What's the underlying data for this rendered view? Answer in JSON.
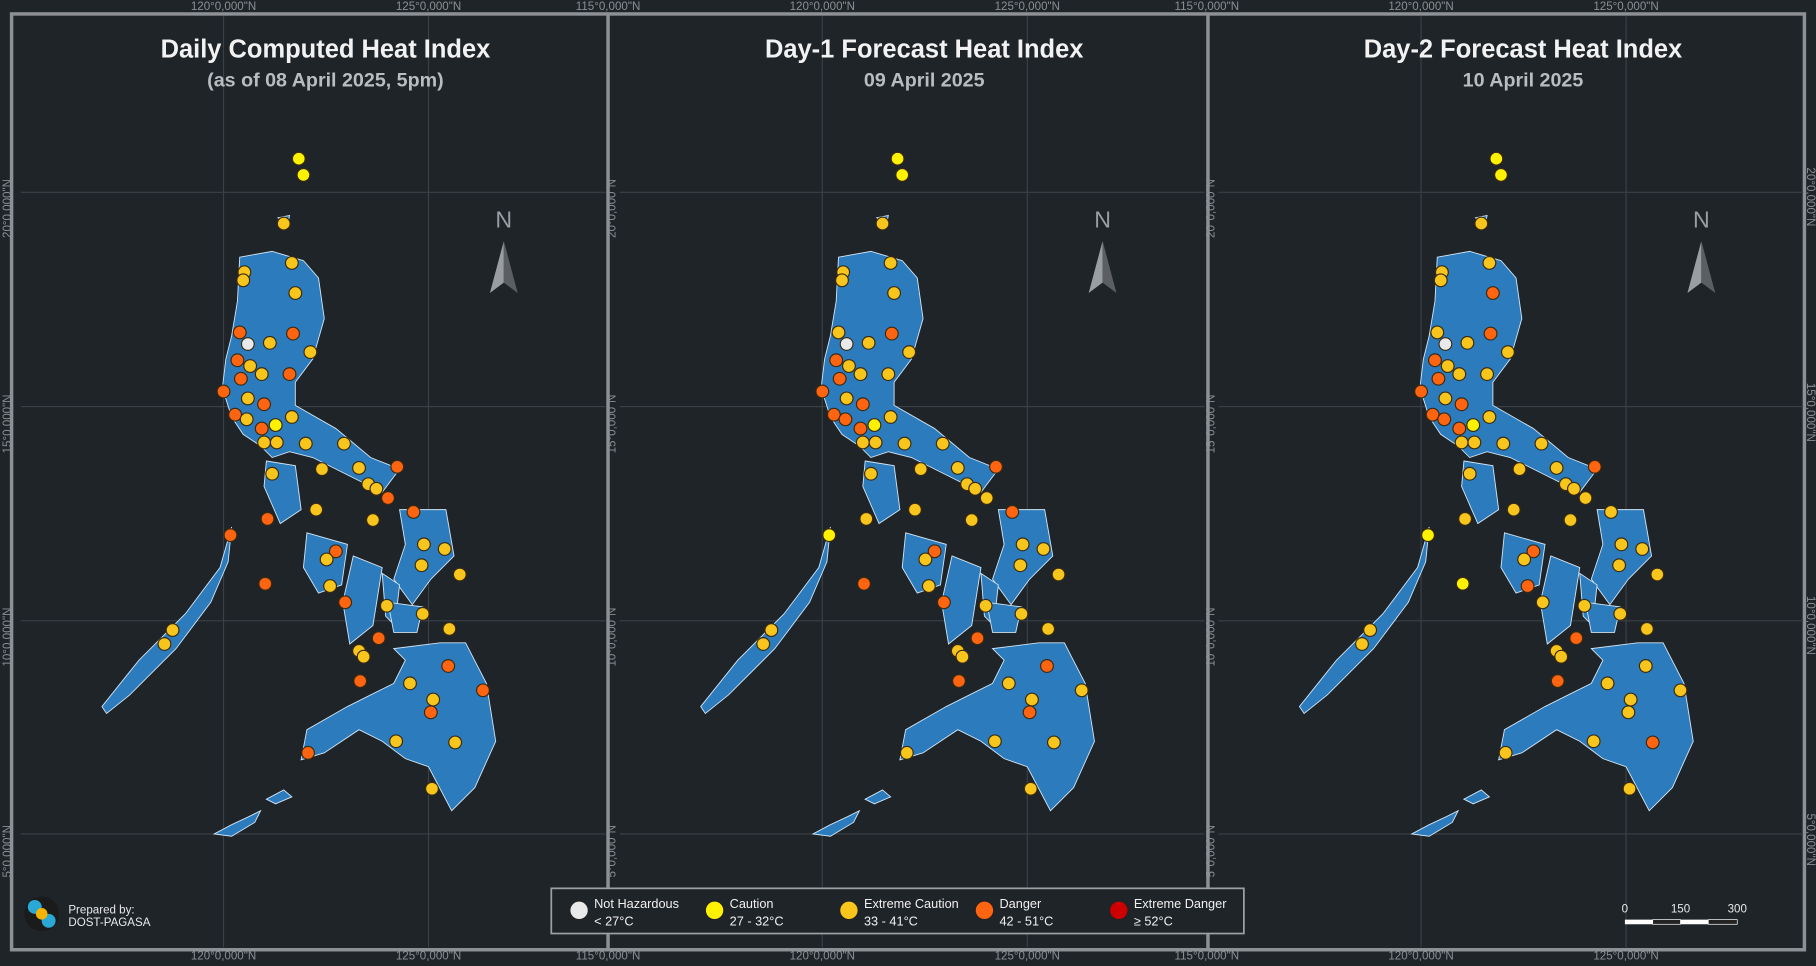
{
  "panels": [
    {
      "title": "Daily Computed Heat Index",
      "subtitle": "(as of 08 April 2025, 5pm)"
    },
    {
      "title": "Day-1 Forecast Heat Index",
      "subtitle": "09 April 2025"
    },
    {
      "title": "Day-2 Forecast Heat Index",
      "subtitle": "10 April 2025"
    }
  ],
  "lon_labels": [
    "115°0,000\"N",
    "120°0,000\"N",
    "125°0,000\"N"
  ],
  "lat_labels": [
    "5°0,000\"N",
    "10°0,000\"N",
    "15°0,000\"N",
    "20°0,000\"N"
  ],
  "north": "N",
  "legend": [
    {
      "name": "Not Hazardous",
      "range": "< 27°C",
      "color": "#e9e9e9"
    },
    {
      "name": "Caution",
      "range": "27 - 32°C",
      "color": "#fff200"
    },
    {
      "name": "Extreme Caution",
      "range": "33 - 41°C",
      "color": "#f7c51c"
    },
    {
      "name": "Danger",
      "range": "42 - 51°C",
      "color": "#ff6410"
    },
    {
      "name": "Extreme Danger",
      "range": "≥ 52°C",
      "color": "#cc0000"
    }
  ],
  "credit": {
    "line1": "Prepared by:",
    "line2": "DOST-PAGASA"
  },
  "scale": [
    "0",
    "150",
    "300"
  ]
}
